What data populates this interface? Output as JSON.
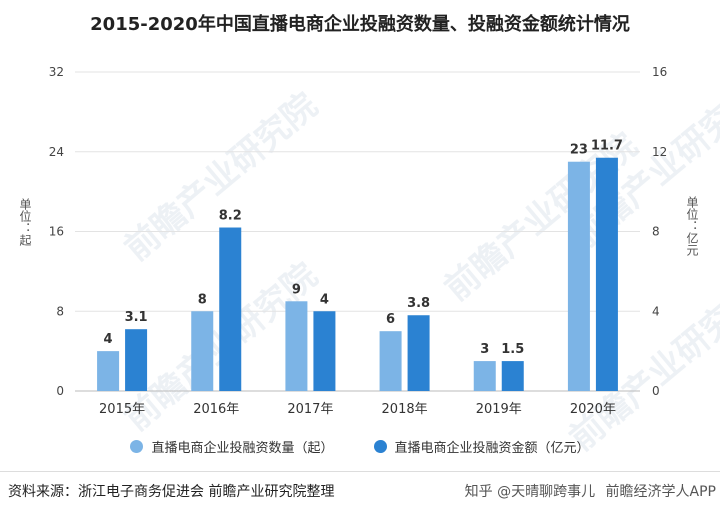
{
  "chart_data": {
    "type": "bar",
    "title": "2015-2020年中国直播电商企业投融资数量、投融资金额统计情况",
    "categories": [
      "2015年",
      "2016年",
      "2017年",
      "2018年",
      "2019年",
      "2020年"
    ],
    "series": [
      {
        "name": "直播电商企业投融资数量（起）",
        "axis": "left",
        "values": [
          4,
          8,
          9,
          6,
          3,
          23
        ],
        "labels": [
          "4",
          "8",
          "9",
          "6",
          "3",
          "23"
        ],
        "color": "#7cb4e6"
      },
      {
        "name": "直播电商企业投融资金额（亿元）",
        "axis": "right",
        "values": [
          3.1,
          8.2,
          4,
          3.8,
          1.5,
          11.7
        ],
        "labels": [
          "3.1",
          "8.2",
          "4",
          "3.8",
          "1.5",
          "11.7"
        ],
        "color": "#2b82d2"
      }
    ],
    "ylabel_left": "单位：起",
    "ylabel_right": "单位：亿元",
    "ylim_left": [
      0,
      32
    ],
    "ylim_right": [
      0,
      16
    ],
    "yticks_left": [
      "0",
      "8",
      "16",
      "24",
      "32"
    ],
    "yticks_right": [
      "0",
      "4",
      "8",
      "12",
      "16"
    ],
    "grid": true,
    "legend": "bottom"
  },
  "watermark": "前瞻产业研究院",
  "source_text": "资料来源：浙江电子商务促进会 前瞻产业研究院整理",
  "credit_text": "知乎 @天晴聊跨事儿",
  "credit_text_2": "前瞻经济学人APP"
}
